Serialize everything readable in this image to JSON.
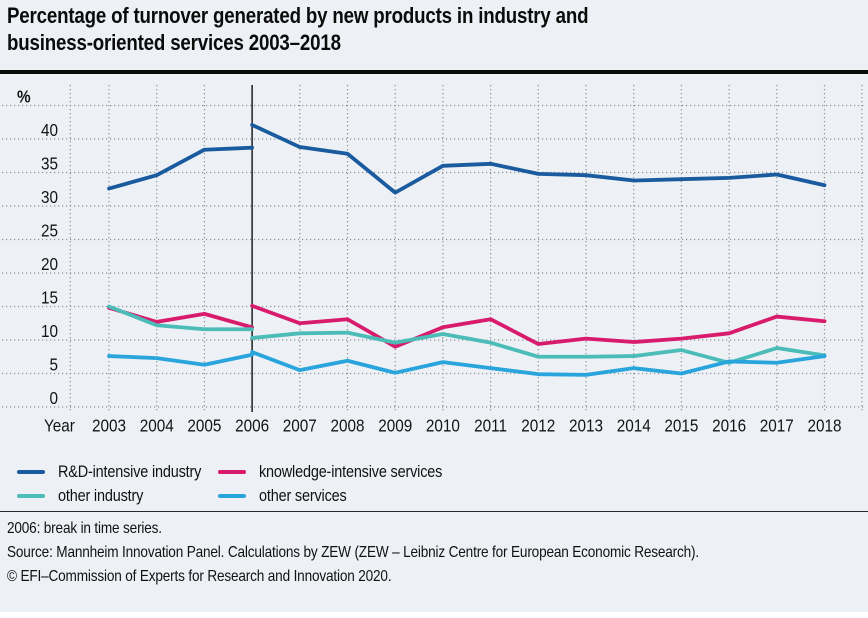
{
  "title": {
    "line1": "Percentage of turnover generated by new products in industry and",
    "line2": "business-oriented services 2003–2018"
  },
  "axis": {
    "x_title": "Year",
    "unit_label": "%"
  },
  "footnotes": [
    "2006: break in time series.",
    "Source: Mannheim Innovation Panel. Calculations by ZEW (ZEW – Leibniz Centre for European Economic Research).",
    "© EFI–Commission of Experts for Research and Innovation 2020."
  ],
  "colors": {
    "background": "#edf1f5",
    "grid": "#8d9298",
    "break_line": "#121212",
    "text": "#111111",
    "header_rule": "#0a0a0a"
  },
  "chart_data": {
    "type": "line",
    "title": "Percentage of turnover generated by new products in industry and business-oriented services 2003–2018",
    "xlabel": "Year",
    "ylabel": "%",
    "x": [
      2003,
      2004,
      2005,
      2006,
      2007,
      2008,
      2009,
      2010,
      2011,
      2012,
      2013,
      2014,
      2015,
      2016,
      2017,
      2018
    ],
    "ylim": [
      0,
      45
    ],
    "y_ticks": [
      0,
      5,
      10,
      15,
      20,
      25,
      30,
      35,
      40
    ],
    "grid": "dotted",
    "legend_position": "bottom",
    "break_year": 2006,
    "break_note": "2006: break in time series.",
    "series": [
      {
        "name": "R&D-intensive industry",
        "color": "#1a5a9e",
        "pre_break": {
          "start_year": 2003,
          "values": [
            32.6,
            34.6,
            38.4,
            38.7
          ]
        },
        "post_break": {
          "start_year": 2006,
          "values": [
            42.1,
            38.8,
            37.8,
            32.0,
            36.0,
            36.3,
            34.8,
            34.6,
            33.8,
            34.0,
            34.2,
            34.7,
            33.1
          ]
        }
      },
      {
        "name": "knowledge-intensive services",
        "color": "#d81b6c",
        "pre_break": {
          "start_year": 2003,
          "values": [
            14.8,
            12.7,
            13.9,
            11.9
          ]
        },
        "post_break": {
          "start_year": 2006,
          "values": [
            15.1,
            12.5,
            13.1,
            9.0,
            11.9,
            13.1,
            9.4,
            10.2,
            9.7,
            10.2,
            11.0,
            13.5,
            12.8
          ]
        }
      },
      {
        "name": "other industry",
        "color": "#4cbcb8",
        "pre_break": {
          "start_year": 2003,
          "values": [
            15.0,
            12.2,
            11.6,
            11.6
          ]
        },
        "post_break": {
          "start_year": 2006,
          "values": [
            10.3,
            11.0,
            11.1,
            9.6,
            10.9,
            9.6,
            7.5,
            7.5,
            7.6,
            8.5,
            6.6,
            8.8,
            7.7
          ]
        }
      },
      {
        "name": "other services",
        "color": "#29a4dc",
        "pre_break": {
          "start_year": 2003,
          "values": [
            7.6,
            7.3,
            6.3,
            7.8
          ]
        },
        "post_break": {
          "start_year": 2006,
          "values": [
            8.2,
            5.5,
            6.9,
            5.1,
            6.7,
            5.8,
            4.9,
            4.8,
            5.8,
            5.0,
            6.8,
            6.6,
            7.6
          ]
        }
      }
    ]
  }
}
